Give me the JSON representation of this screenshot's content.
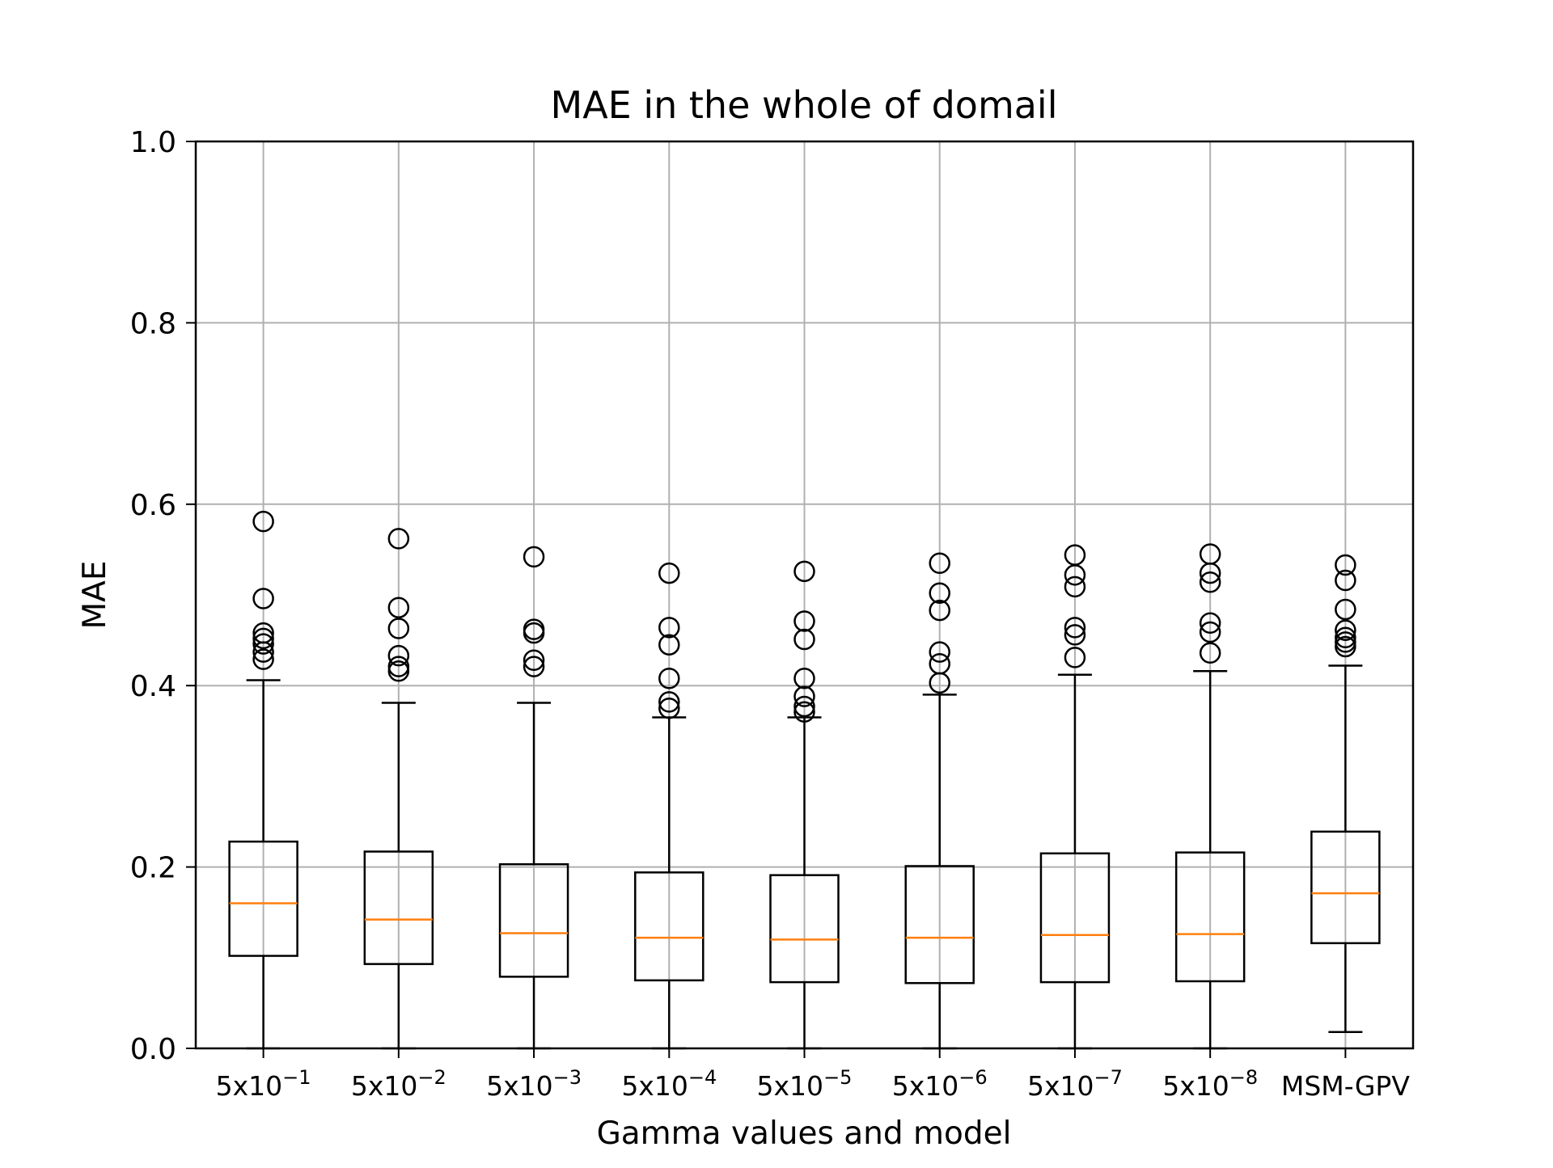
{
  "chart_data": {
    "type": "box",
    "title": "MAE in the whole of domail",
    "xlabel": "Gamma values and model",
    "ylabel": "MAE",
    "ylim": [
      0.0,
      1.0
    ],
    "yticks": [
      "0.0",
      "0.2",
      "0.4",
      "0.6",
      "0.8",
      "1.0"
    ],
    "grid": true,
    "colors": {
      "box": "#000000",
      "median": "#ff7f0e",
      "grid": "#b0b0b0",
      "flier": "#000000"
    },
    "categories": [
      {
        "base": "5x10",
        "exp": "−1"
      },
      {
        "base": "5x10",
        "exp": "−2"
      },
      {
        "base": "5x10",
        "exp": "−3"
      },
      {
        "base": "5x10",
        "exp": "−4"
      },
      {
        "base": "5x10",
        "exp": "−5"
      },
      {
        "base": "5x10",
        "exp": "−6"
      },
      {
        "base": "5x10",
        "exp": "−7"
      },
      {
        "base": "5x10",
        "exp": "−8"
      },
      {
        "base": "MSM-GPV",
        "exp": ""
      }
    ],
    "boxes": [
      {
        "whisker_low": 0.0,
        "q1": 0.102,
        "median": 0.16,
        "q3": 0.228,
        "whisker_high": 0.406,
        "fliers": [
          0.429,
          0.437,
          0.446,
          0.452,
          0.458,
          0.496,
          0.581
        ]
      },
      {
        "whisker_low": 0.0,
        "q1": 0.093,
        "median": 0.142,
        "q3": 0.217,
        "whisker_high": 0.381,
        "fliers": [
          0.416,
          0.421,
          0.433,
          0.463,
          0.486,
          0.562
        ]
      },
      {
        "whisker_low": 0.0,
        "q1": 0.079,
        "median": 0.127,
        "q3": 0.203,
        "whisker_high": 0.381,
        "fliers": [
          0.421,
          0.428,
          0.458,
          0.462,
          0.542
        ]
      },
      {
        "whisker_low": 0.0,
        "q1": 0.075,
        "median": 0.122,
        "q3": 0.194,
        "whisker_high": 0.365,
        "fliers": [
          0.375,
          0.382,
          0.408,
          0.445,
          0.464,
          0.524
        ]
      },
      {
        "whisker_low": 0.0,
        "q1": 0.073,
        "median": 0.12,
        "q3": 0.191,
        "whisker_high": 0.365,
        "fliers": [
          0.371,
          0.377,
          0.388,
          0.408,
          0.451,
          0.471,
          0.526
        ]
      },
      {
        "whisker_low": 0.0,
        "q1": 0.072,
        "median": 0.122,
        "q3": 0.201,
        "whisker_high": 0.39,
        "fliers": [
          0.403,
          0.424,
          0.437,
          0.483,
          0.502,
          0.535
        ]
      },
      {
        "whisker_low": 0.0,
        "q1": 0.073,
        "median": 0.125,
        "q3": 0.215,
        "whisker_high": 0.412,
        "fliers": [
          0.431,
          0.456,
          0.464,
          0.509,
          0.522,
          0.544
        ]
      },
      {
        "whisker_low": 0.0,
        "q1": 0.074,
        "median": 0.126,
        "q3": 0.216,
        "whisker_high": 0.416,
        "fliers": [
          0.436,
          0.459,
          0.469,
          0.514,
          0.524,
          0.545
        ]
      },
      {
        "whisker_low": 0.018,
        "q1": 0.116,
        "median": 0.171,
        "q3": 0.239,
        "whisker_high": 0.422,
        "fliers": [
          0.443,
          0.448,
          0.453,
          0.461,
          0.484,
          0.516,
          0.533
        ]
      }
    ]
  }
}
